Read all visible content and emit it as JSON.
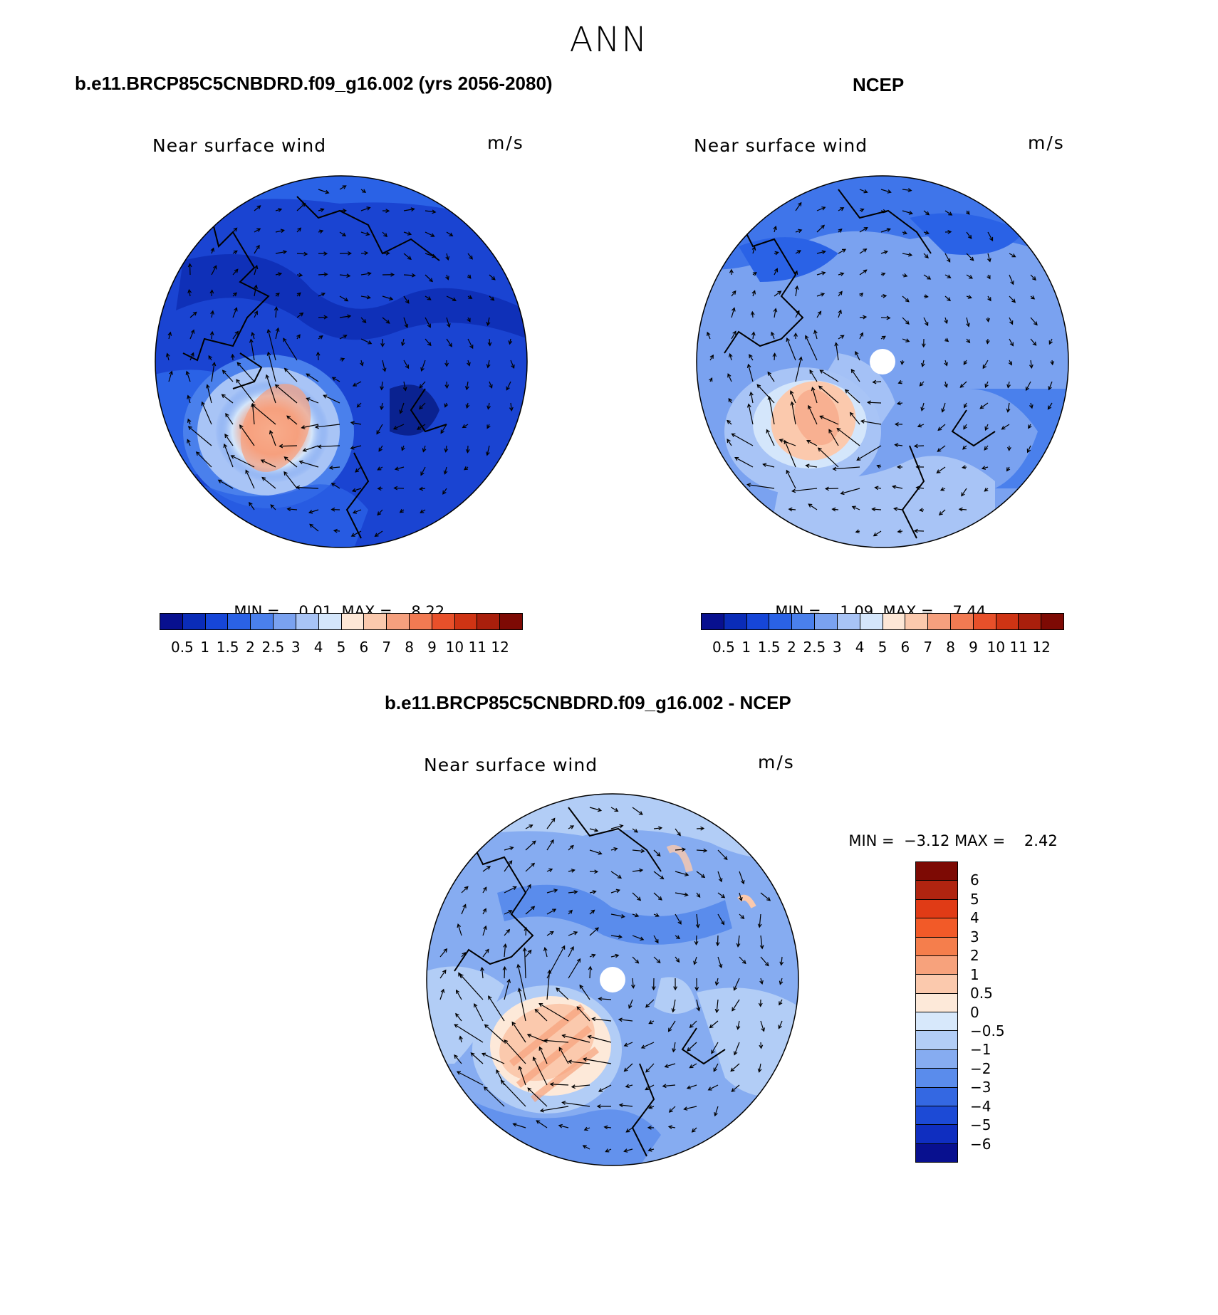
{
  "figure_title": "ANN",
  "panels": [
    {
      "title": "b.e11.BRCP85C5CNBDRD.f09_g16.002 (yrs 2056-2080)",
      "variable": "Near surface wind",
      "units": "m/s",
      "min_label": "MIN =",
      "min_value": "0.01",
      "max_label": "MAX =",
      "max_value": "8.22"
    },
    {
      "title": "NCEP",
      "variable": "Near surface wind",
      "units": "m/s",
      "min_label": "MIN =",
      "min_value": "1.09",
      "max_label": "MAX =",
      "max_value": "7.44"
    },
    {
      "title": "b.e11.BRCP85C5CNBDRD.f09_g16.002 - NCEP",
      "variable": "Near surface wind",
      "units": "m/s",
      "min_label": "MIN =",
      "min_value": "−3.12",
      "max_label": "MAX =",
      "max_value": "2.42"
    }
  ],
  "wind_colorbar": {
    "colors": [
      "#08108f",
      "#0a2cb8",
      "#1646d8",
      "#2a62e6",
      "#4a80ec",
      "#7aa2f0",
      "#a8c4f6",
      "#d4e6fb",
      "#fde7d6",
      "#fbc9ad",
      "#f6a07e",
      "#f27a52",
      "#e8502a",
      "#cf3414",
      "#a91f0c",
      "#7d0a04"
    ],
    "tick_labels": [
      "0.5",
      "1",
      "1.5",
      "2",
      "2.5",
      "3",
      "4",
      "5",
      "6",
      "7",
      "8",
      "9",
      "10",
      "11",
      "12"
    ]
  },
  "diff_colorbar": {
    "colors_top_to_bottom": [
      "#7d0a04",
      "#b02410",
      "#e03b16",
      "#f25a28",
      "#f57e4c",
      "#f7a27c",
      "#fbc9ad",
      "#fde9d9",
      "#d7e8fb",
      "#b2cdf6",
      "#86acf1",
      "#5a8cec",
      "#3468e2",
      "#1c4ad6",
      "#0f2ec0",
      "#08108f"
    ],
    "tick_labels_top_to_bottom": [
      "6",
      "5",
      "4",
      "3",
      "2",
      "1",
      "0.5",
      "0",
      "−0.5",
      "−1",
      "−2",
      "−3",
      "−4",
      "−5",
      "−6"
    ]
  }
}
